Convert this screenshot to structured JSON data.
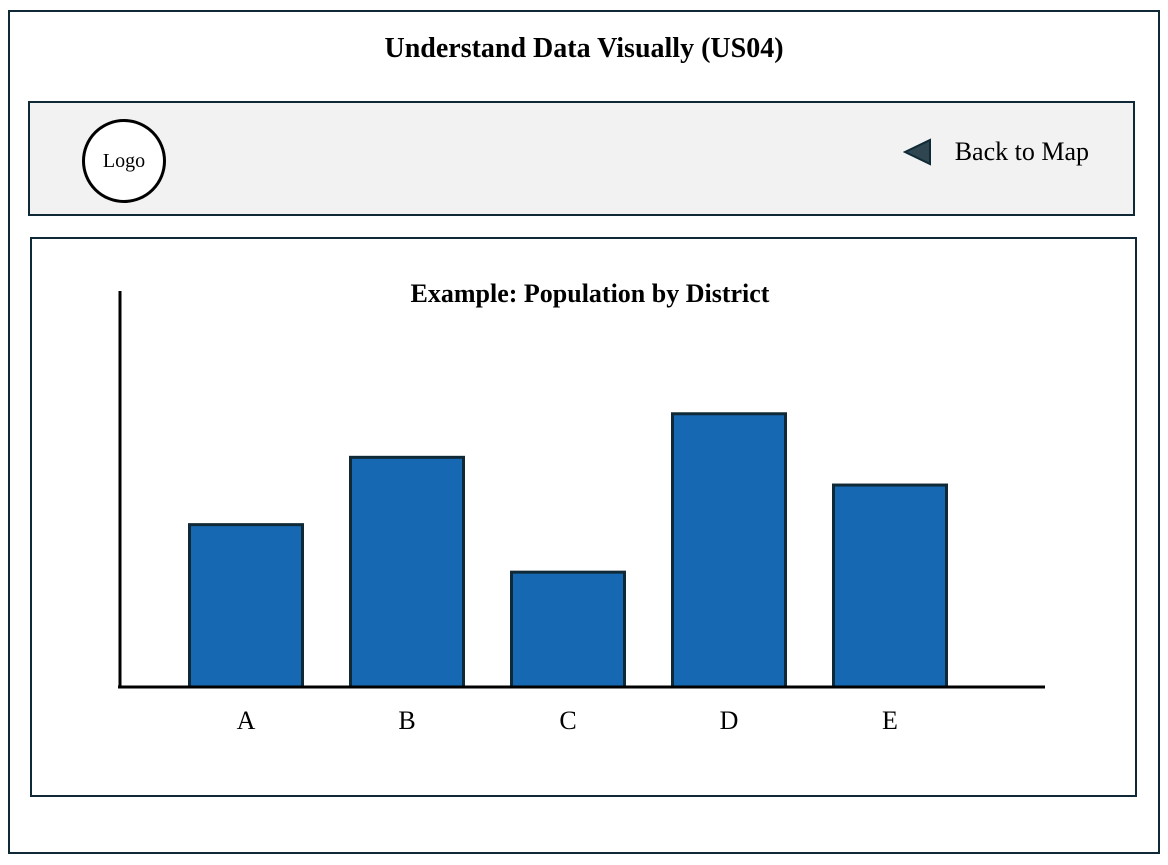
{
  "page": {
    "title": "Understand Data Visually (US04)"
  },
  "header": {
    "logo_label": "Logo",
    "back_label": "Back to Map",
    "back_icon": "triangle-left-icon"
  },
  "colors": {
    "bar_fill": "#1668b2",
    "border": "#0f2a36",
    "header_bg": "#f2f2f2"
  },
  "chart_data": {
    "type": "bar",
    "title": "Example: Population by District",
    "xlabel": "",
    "ylabel": "",
    "categories": [
      "A",
      "B",
      "C",
      "D",
      "E"
    ],
    "values": [
      41,
      58,
      29,
      69,
      51
    ],
    "ylim": [
      0,
      100
    ],
    "grid": false,
    "legend": "none"
  }
}
